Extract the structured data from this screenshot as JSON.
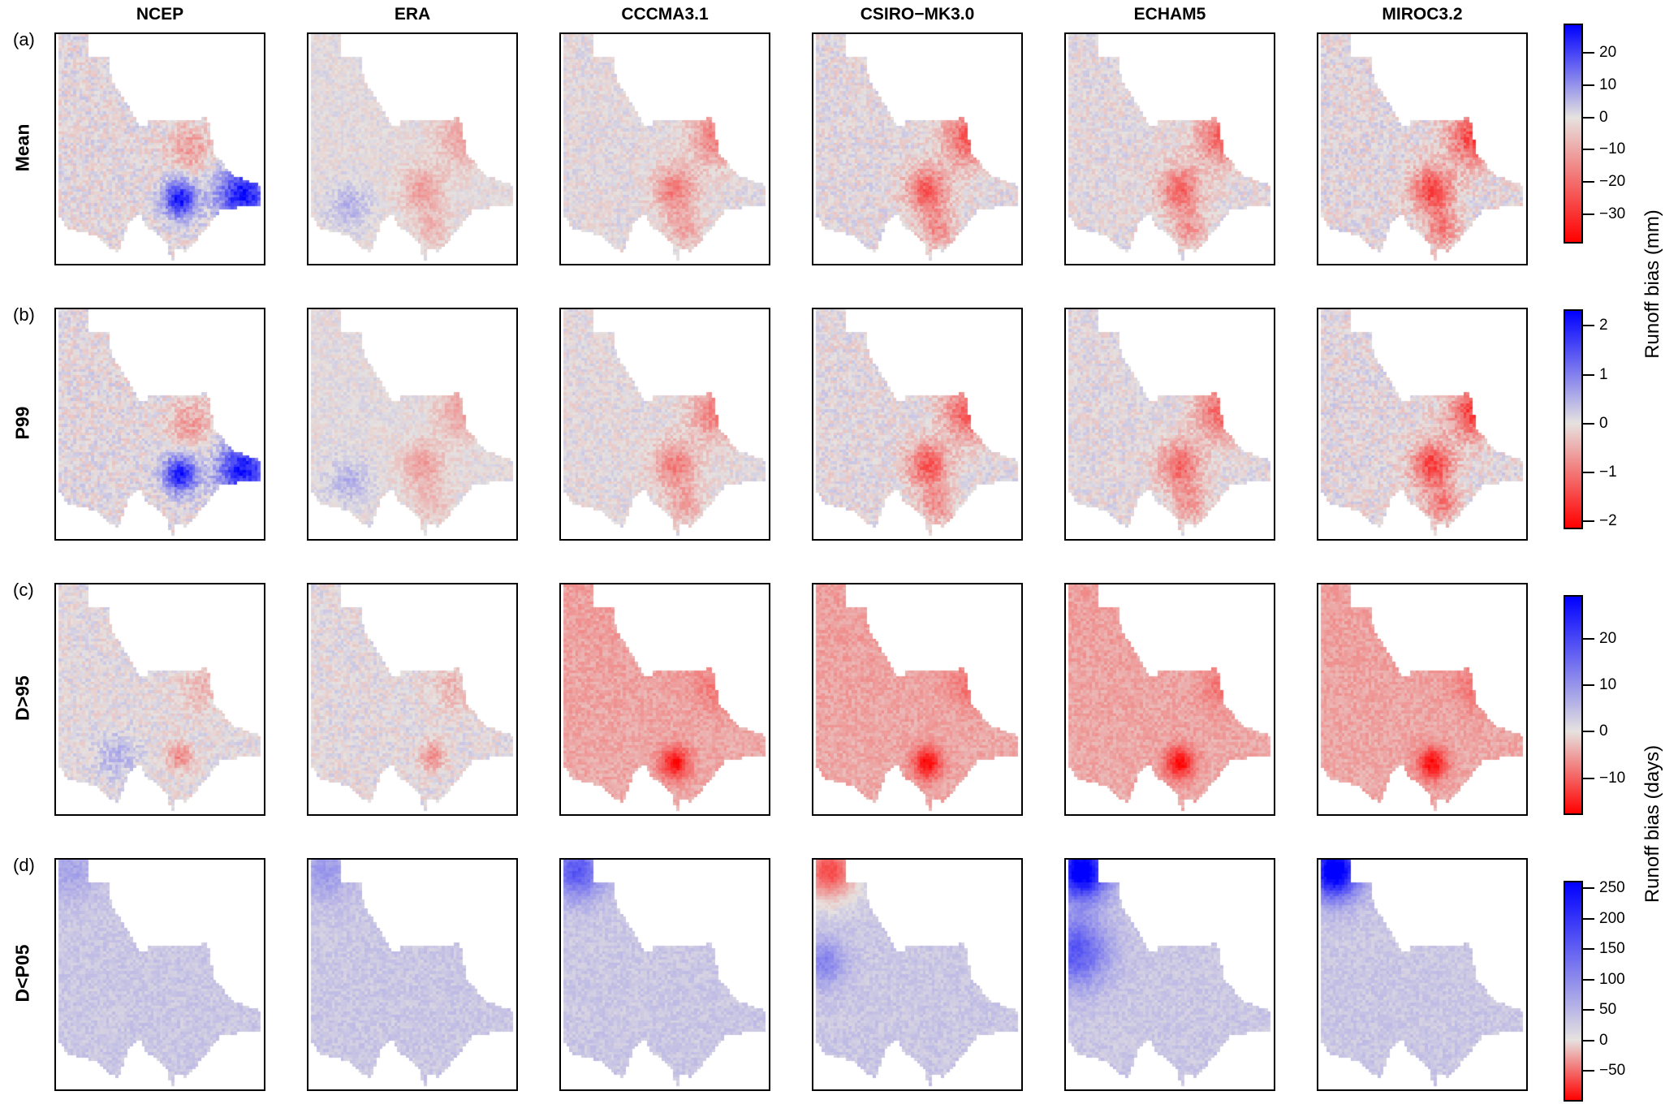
{
  "chart_data": {
    "type": "heatmap",
    "columns": [
      "NCEP",
      "ERA",
      "CCCMA3.1",
      "CSIRO−MK3.0",
      "ECHAM5",
      "MIROC3.2"
    ],
    "rows": [
      {
        "tag": "(a)",
        "name": "Mean"
      },
      {
        "tag": "(b)",
        "name": "P99"
      },
      {
        "tag": "(c)",
        "name": "D>95"
      },
      {
        "tag": "(d)",
        "name": "D<P05"
      }
    ],
    "colorbars": [
      {
        "range": [
          -39,
          29
        ],
        "ticks": [
          20,
          10,
          0,
          -10,
          -20,
          -30
        ],
        "tick_labels": [
          "20",
          "10",
          "0",
          "−10",
          "−20",
          "−30"
        ]
      },
      {
        "range": [
          -2.17,
          2.34
        ],
        "ticks": [
          2,
          1,
          0,
          -1,
          -2
        ],
        "tick_labels": [
          "2",
          "1",
          "0",
          "−1",
          "−2"
        ]
      },
      {
        "range": [
          -17.9,
          29.4
        ],
        "ticks": [
          20,
          10,
          0,
          -10
        ],
        "tick_labels": [
          "20",
          "10",
          "0",
          "−10"
        ]
      },
      {
        "range": [
          -100,
          262
        ],
        "ticks": [
          250,
          200,
          150,
          100,
          50,
          0,
          -50
        ],
        "tick_labels": [
          "250",
          "200",
          "150",
          "100",
          "50",
          "0",
          "−50"
        ]
      }
    ],
    "colorbar_labels": [
      "Runoff bias (mm)",
      "Runoff bias (days)"
    ],
    "colors": {
      "negative": "#ff0000",
      "zero": "#e6e2e0",
      "positive": "#0000ff"
    }
  }
}
